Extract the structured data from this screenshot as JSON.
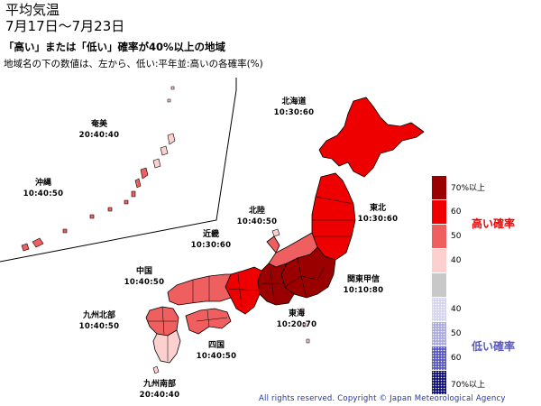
{
  "title": {
    "line1": "平均気温",
    "line2": "7月17日～7月23日"
  },
  "subtitle": "「高い」または「低い」確率が40%以上の地域",
  "note": "地域名の下の数値は、左から、低い:平年並:高いの各確率(%)",
  "regions": [
    {
      "name": "北海道",
      "values": "10:30:60"
    },
    {
      "name": "東北",
      "values": "10:30:60"
    },
    {
      "name": "関東甲信",
      "values": "10:10:80"
    },
    {
      "name": "北陸",
      "values": "10:40:50"
    },
    {
      "name": "東海",
      "values": "10:20:70"
    },
    {
      "name": "近畿",
      "values": "10:30:60"
    },
    {
      "name": "中国",
      "values": "10:40:50"
    },
    {
      "name": "四国",
      "values": "10:40:50"
    },
    {
      "name": "九州北部",
      "values": "10:40:50"
    },
    {
      "name": "九州南部",
      "values": "20:40:40"
    },
    {
      "name": "奄美",
      "values": "20:40:40"
    },
    {
      "name": "沖縄",
      "values": "10:40:50"
    }
  ],
  "legend": {
    "high_caption": "高い確率",
    "low_caption": "低い確率",
    "colors": {
      "high70": "#9a0000",
      "high60": "#ee0000",
      "high50": "#f05f5f",
      "high40": "#fdd0d0",
      "normal": "#c8c8c8",
      "low40": "#d4d4f0",
      "low50": "#aaaade",
      "low60": "#5858c0",
      "low70": "#10107a"
    },
    "labels": {
      "high70": "70%以上",
      "high60": "60",
      "high50": "50",
      "high40": "40",
      "low40": "40",
      "low50": "50",
      "low60": "60",
      "low70": "70%以上"
    }
  },
  "copyright": "All rights reserved. Copyright © Japan Meteorological Agency"
}
